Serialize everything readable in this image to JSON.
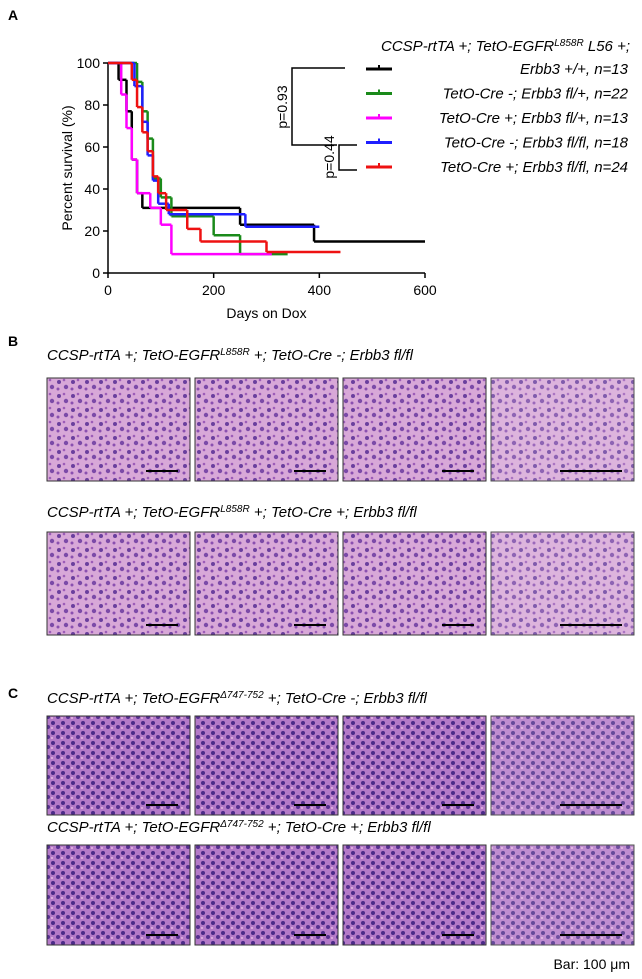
{
  "panels": [
    "A",
    "B",
    "C"
  ],
  "chart_data": {
    "type": "line",
    "legend_title": {
      "pre": "CCSP-rtTA +; TetO-EGFR",
      "sup": "L858R",
      "post": " L56 +;"
    },
    "ylabel": "Percent survival (%)",
    "xlabel": "Days on  Dox",
    "xlim": [
      0,
      600
    ],
    "xticks": [
      0,
      200,
      400,
      600
    ],
    "ylim": [
      0,
      100
    ],
    "yticks": [
      0,
      20,
      40,
      60,
      80,
      100
    ],
    "annotations": [
      "p=0.93",
      "p=0.44"
    ],
    "series": [
      {
        "name": "Erbb3 +/+, n=13",
        "color": "#000000",
        "x": [
          0,
          20,
          35,
          45,
          55,
          65,
          250,
          390,
          600
        ],
        "values": [
          100,
          92,
          77,
          54,
          38,
          31,
          23,
          15,
          15
        ]
      },
      {
        "name": "TetO-Cre -; Erbb3 fl/+, n=22",
        "color": "#1a8a1a",
        "x": [
          0,
          55,
          65,
          75,
          85,
          100,
          120,
          200,
          250,
          340
        ],
        "values": [
          100,
          91,
          77,
          64,
          45,
          36,
          27,
          18,
          9,
          9
        ]
      },
      {
        "name": "TetO-Cre +; Erbb3 fl/+, n=13",
        "color": "#ff00ff",
        "x": [
          0,
          25,
          35,
          45,
          55,
          80,
          100,
          120,
          310
        ],
        "values": [
          100,
          85,
          69,
          54,
          38,
          31,
          23,
          9,
          9
        ]
      },
      {
        "name": "TetO-Cre -; Erbb3 fl/fl, n=18",
        "color": "#1f1fff",
        "x": [
          0,
          50,
          65,
          75,
          85,
          95,
          115,
          260,
          400
        ],
        "values": [
          100,
          89,
          72,
          56,
          44,
          33,
          28,
          22,
          22
        ]
      },
      {
        "name": "TetO-Cre +; Erbb3 fl/fl, n=24",
        "color": "#ee1111",
        "x": [
          0,
          45,
          55,
          65,
          75,
          85,
          95,
          110,
          150,
          175,
          300,
          440
        ],
        "values": [
          100,
          92,
          79,
          67,
          58,
          46,
          38,
          30,
          21,
          15,
          10,
          10
        ]
      }
    ]
  },
  "histology": [
    {
      "rows": [
        {
          "title": {
            "pre": "CCSP-rtTA +; TetO-EGFR",
            "sup": "L858R",
            "post": " +; TetO-Cre -; Erbb3 fl/fl"
          }
        },
        {
          "title": {
            "pre": "CCSP-rtTA +; TetO-EGFR",
            "sup": "L858R",
            "post": " +; TetO-Cre +; Erbb3 fl/fl"
          }
        }
      ]
    },
    {
      "rows": [
        {
          "title": {
            "pre": "CCSP-rtTA +; TetO-EGFR",
            "sup": "Δ747-752",
            "post": " +; TetO-Cre -; Erbb3 fl/fl"
          }
        },
        {
          "title": {
            "pre": "CCSP-rtTA +; TetO-EGFR",
            "sup": "Δ747-752",
            "post": " +; TetO-Cre +; Erbb3 fl/fl"
          }
        }
      ]
    }
  ],
  "footer": "Bar: 100 μm"
}
